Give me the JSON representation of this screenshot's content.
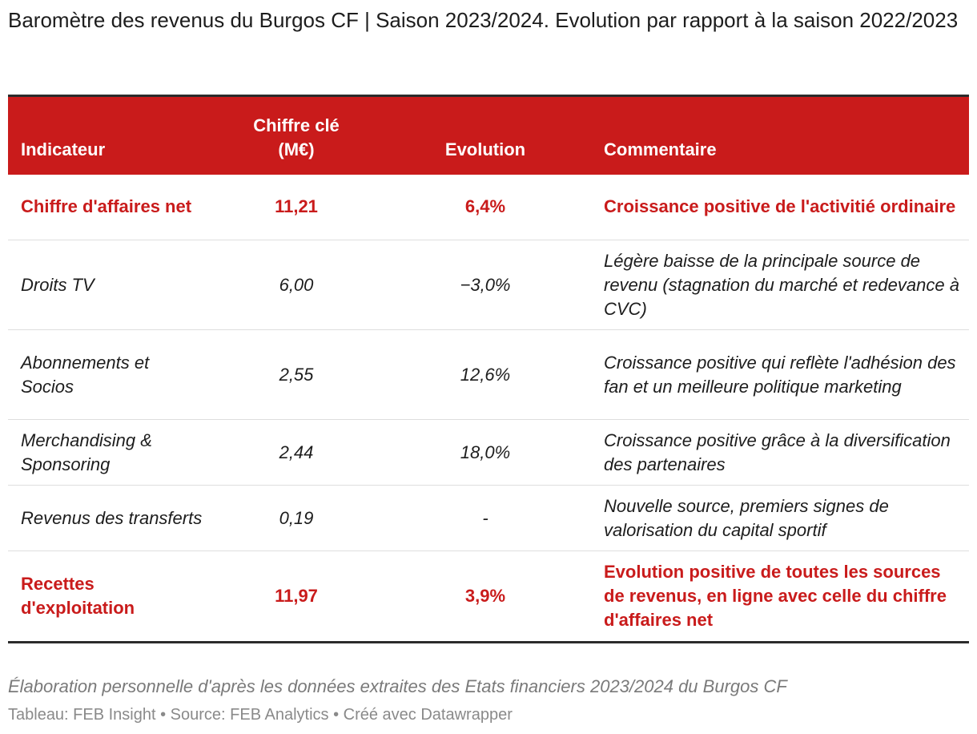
{
  "title": "Baromètre des revenus du Burgos CF | Saison 2023/2024. Evolution par rapport à la saison 2022/2023",
  "table": {
    "headers": [
      "Indicateur",
      "Chiffre clé (M€)",
      "Evolution",
      "Commentaire"
    ],
    "rows": [
      {
        "indicator": "Chiffre d'affaires net",
        "value": "11,21",
        "evolution": "6,4%",
        "comment": "Croissance positive de l'activitié ordinaire",
        "style": "highlight"
      },
      {
        "indicator": "Droits TV",
        "value": "6,00",
        "evolution": "−3,0%",
        "comment": "Légère baisse de la principale source de revenu (stagnation du marché et redevance à CVC)",
        "style": "italic"
      },
      {
        "indicator": "Abonnements et Socios",
        "value": "2,55",
        "evolution": "12,6%",
        "comment": "Croissance positive qui reflète l'adhésion des fan et un meilleure politique marketing",
        "style": "italic"
      },
      {
        "indicator": "Merchandising & Sponsoring",
        "value": "2,44",
        "evolution": "18,0%",
        "comment": "Croissance positive grâce à la diversification des partenaires",
        "style": "italic"
      },
      {
        "indicator": "Revenus des transferts",
        "value": "0,19",
        "evolution": "-",
        "comment": "Nouvelle source, premiers signes de valorisation du capital sportif",
        "style": "italic"
      },
      {
        "indicator": "Recettes d'exploitation",
        "value": "11,97",
        "evolution": "3,9%",
        "comment": "Evolution positive de toutes les sources de revenus, en ligne avec celle du chiffre d'affaires net",
        "style": "highlight"
      }
    ]
  },
  "note": "Élaboration personnelle d'après les données extraites des Etats financiers 2023/2024 du Burgos CF",
  "footer": "Tableau: FEB Insight • Source: FEB Analytics • Créé avec Datawrapper",
  "colors": {
    "accent": "#c91b1b",
    "header_text": "#ffffff",
    "text": "#1d1d1d",
    "muted": "#8a8a8a"
  }
}
